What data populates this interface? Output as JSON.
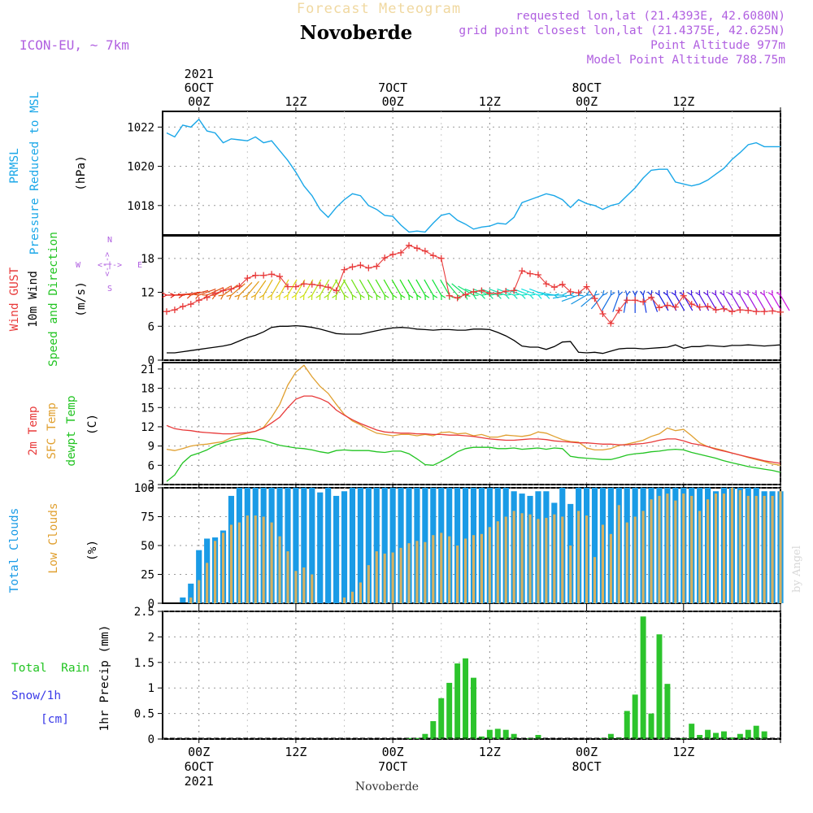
{
  "header": {
    "title_faint": "Forecast Meteogram",
    "location": "Novoberde",
    "model": "ICON-EU, ~ 7km",
    "info_lines": [
      "requested lon,lat (21.4393E, 42.6080N)",
      "grid point closest lon,lat (21.4375E, 42.625N)",
      "Point Altitude 977m",
      "Model Point Altitude 788.75m"
    ],
    "footer_location": "Novoberde",
    "credit": "by Angel"
  },
  "time_axis": {
    "top_labels": [
      {
        "t": 0,
        "lines": [
          "2021",
          "6OCT",
          "00Z"
        ]
      },
      {
        "t": 12,
        "lines": [
          "12Z"
        ]
      },
      {
        "t": 24,
        "lines": [
          "7OCT",
          "00Z"
        ]
      },
      {
        "t": 36,
        "lines": [
          "12Z"
        ]
      },
      {
        "t": 48,
        "lines": [
          "8OCT",
          "00Z"
        ]
      },
      {
        "t": 60,
        "lines": [
          "12Z"
        ]
      }
    ],
    "bottom_labels": [
      {
        "t": 0,
        "lines": [
          "00Z",
          "6OCT",
          "2021"
        ]
      },
      {
        "t": 12,
        "lines": [
          "12Z"
        ]
      },
      {
        "t": 24,
        "lines": [
          "00Z",
          "7OCT"
        ]
      },
      {
        "t": 36,
        "lines": [
          "12Z"
        ]
      },
      {
        "t": 48,
        "lines": [
          "00Z",
          "8OCT"
        ]
      },
      {
        "t": 60,
        "lines": [
          "12Z"
        ]
      }
    ],
    "range_hours": [
      -4.5,
      72
    ]
  },
  "colors": {
    "pressure": "#1aa7e8",
    "gust": "#e83a3a",
    "wind": "#000000",
    "temp2m": "#e83a3a",
    "sfc": "#e0a030",
    "dew": "#22c422",
    "total_clouds": "#1a9be6",
    "low_clouds": "#d6b060",
    "rain": "#2cc42c",
    "snow": "#3a3ae8",
    "meta": "#b060e0"
  },
  "chart_data": [
    {
      "type": "line",
      "name": "pressure",
      "labels": [
        "PRMSL",
        "Pressure Reduced to MSL",
        "(hPa)"
      ],
      "ylim": [
        1016.5,
        1022.8
      ],
      "yticks": [
        1018,
        1020,
        1022
      ],
      "x": [
        -4,
        -3,
        -2,
        -1,
        0,
        1,
        2,
        3,
        4,
        5,
        6,
        7,
        8,
        9,
        10,
        11,
        12,
        13,
        14,
        15,
        16,
        17,
        18,
        19,
        20,
        21,
        22,
        23,
        24,
        25,
        26,
        27,
        28,
        29,
        30,
        31,
        32,
        33,
        34,
        35,
        36,
        37,
        38,
        39,
        40,
        41,
        42,
        43,
        44,
        45,
        46,
        47,
        48,
        49,
        50,
        51,
        52,
        53,
        54,
        55,
        56,
        57,
        58,
        59,
        60,
        61,
        62,
        63,
        64,
        65,
        66,
        67,
        68,
        69,
        70,
        71,
        72
      ],
      "values": [
        1021.7,
        1021.5,
        1022.1,
        1022.0,
        1022.4,
        1021.8,
        1021.7,
        1021.2,
        1021.4,
        1021.35,
        1021.3,
        1021.5,
        1021.2,
        1021.3,
        1020.8,
        1020.3,
        1019.7,
        1019.0,
        1018.5,
        1017.8,
        1017.4,
        1017.9,
        1018.3,
        1018.6,
        1018.5,
        1018.0,
        1017.8,
        1017.5,
        1017.45,
        1017.0,
        1016.65,
        1016.7,
        1016.65,
        1017.1,
        1017.5,
        1017.6,
        1017.25,
        1017.05,
        1016.8,
        1016.9,
        1016.95,
        1017.1,
        1017.05,
        1017.4,
        1018.15,
        1018.3,
        1018.45,
        1018.6,
        1018.5,
        1018.3,
        1017.9,
        1018.3,
        1018.1,
        1018.0,
        1017.8,
        1018.0,
        1018.1,
        1018.5,
        1018.9,
        1019.4,
        1019.8,
        1019.85,
        1019.85,
        1019.2,
        1019.1,
        1019.0,
        1019.1,
        1019.3,
        1019.6,
        1019.9,
        1020.35,
        1020.7,
        1021.1,
        1021.2,
        1021.0,
        1021.0,
        1021.0
      ]
    },
    {
      "type": "line",
      "name": "wind",
      "labels": [
        "Wind GUST",
        "10m Wind",
        "Speed and Direction",
        "(m/s)"
      ],
      "compass": {
        "n": "N",
        "w": "W",
        "e": "E",
        "s": "S",
        "glyph": "<-|->"
      },
      "ylim": [
        0,
        22
      ],
      "yticks": [
        0,
        6,
        12,
        18
      ],
      "x": [
        -4,
        -3,
        -2,
        -1,
        0,
        1,
        2,
        3,
        4,
        5,
        6,
        7,
        8,
        9,
        10,
        11,
        12,
        13,
        14,
        15,
        16,
        17,
        18,
        19,
        20,
        21,
        22,
        23,
        24,
        25,
        26,
        27,
        28,
        29,
        30,
        31,
        32,
        33,
        34,
        35,
        36,
        37,
        38,
        39,
        40,
        41,
        42,
        43,
        44,
        45,
        46,
        47,
        48,
        49,
        50,
        51,
        52,
        53,
        54,
        55,
        56,
        57,
        58,
        59,
        60,
        61,
        62,
        63,
        64,
        65,
        66,
        67,
        68,
        69,
        70,
        71,
        72
      ],
      "wind_values": [
        1.3,
        1.3,
        1.5,
        1.7,
        1.9,
        2.1,
        2.3,
        2.5,
        2.8,
        3.4,
        4.0,
        4.4,
        5.0,
        5.8,
        6.0,
        6.0,
        6.1,
        6.0,
        5.8,
        5.5,
        5.1,
        4.7,
        4.6,
        4.6,
        4.6,
        4.9,
        5.2,
        5.5,
        5.7,
        5.8,
        5.7,
        5.5,
        5.4,
        5.3,
        5.4,
        5.4,
        5.3,
        5.3,
        5.5,
        5.5,
        5.4,
        4.9,
        4.3,
        3.5,
        2.5,
        2.3,
        2.3,
        1.9,
        2.4,
        3.2,
        3.3,
        1.4,
        1.3,
        1.4,
        1.2,
        1.6,
        2.0,
        2.1,
        2.1,
        2.0,
        2.1,
        2.2,
        2.3,
        2.7,
        2.1,
        2.4,
        2.4,
        2.6,
        2.5,
        2.4,
        2.6,
        2.6,
        2.7,
        2.6,
        2.5,
        2.6,
        2.7
      ],
      "gust_values": [
        8.6,
        8.9,
        9.5,
        9.9,
        10.6,
        11.1,
        11.8,
        12.3,
        12.6,
        13.1,
        14.5,
        15.0,
        15.0,
        15.2,
        14.8,
        13.0,
        13.0,
        13.5,
        13.4,
        13.2,
        12.9,
        12.3,
        16.0,
        16.5,
        16.8,
        16.3,
        16.6,
        18.1,
        18.7,
        19.0,
        20.3,
        19.8,
        19.3,
        18.5,
        18.0,
        11.4,
        11.0,
        11.6,
        12.1,
        12.3,
        11.8,
        11.8,
        12.2,
        12.3,
        15.8,
        15.3,
        15.1,
        13.5,
        12.9,
        13.4,
        12.1,
        11.9,
        13.0,
        10.9,
        8.2,
        6.5,
        8.8,
        10.6,
        10.6,
        10.3,
        11.1,
        9.3,
        9.7,
        9.4,
        11.4,
        9.9,
        9.4,
        9.5,
        8.9,
        9.1,
        8.6,
        8.9,
        8.8,
        8.6,
        8.6,
        8.7,
        8.5
      ],
      "direction_deg": [
        90,
        85,
        80,
        75,
        70,
        65,
        60,
        55,
        50,
        45,
        40,
        35,
        30,
        30,
        30,
        30,
        30,
        30,
        30,
        30,
        30,
        30,
        330,
        330,
        330,
        330,
        330,
        330,
        330,
        330,
        330,
        330,
        330,
        330,
        330,
        330,
        320,
        310,
        300,
        290,
        290,
        290,
        290,
        290,
        290,
        290,
        290,
        290,
        280,
        270,
        260,
        250,
        240,
        230,
        220,
        210,
        200,
        190,
        180,
        170,
        160,
        150,
        150,
        150,
        150,
        150,
        150,
        150,
        150,
        150,
        150,
        150,
        150,
        150,
        150,
        150,
        150
      ]
    },
    {
      "type": "line",
      "name": "temperature",
      "labels": [
        "2m Temp",
        "SFC Temp",
        "dewpt Temp",
        "(C)"
      ],
      "ylim": [
        3,
        22
      ],
      "yticks": [
        3,
        6,
        9,
        12,
        15,
        18,
        21
      ],
      "x": [
        -4,
        -3,
        -2,
        -1,
        0,
        1,
        2,
        3,
        4,
        5,
        6,
        7,
        8,
        9,
        10,
        11,
        12,
        13,
        14,
        15,
        16,
        17,
        18,
        19,
        20,
        21,
        22,
        23,
        24,
        25,
        26,
        27,
        28,
        29,
        30,
        31,
        32,
        33,
        34,
        35,
        36,
        37,
        38,
        39,
        40,
        41,
        42,
        43,
        44,
        45,
        46,
        47,
        48,
        49,
        50,
        51,
        52,
        53,
        54,
        55,
        56,
        57,
        58,
        59,
        60,
        61,
        62,
        63,
        64,
        65,
        66,
        67,
        68,
        69,
        70,
        71,
        72
      ],
      "temp2m": [
        12.2,
        11.7,
        11.5,
        11.4,
        11.2,
        11.1,
        11.0,
        10.9,
        10.9,
        11.0,
        11.1,
        11.3,
        11.8,
        12.6,
        13.5,
        15.0,
        16.3,
        16.8,
        16.8,
        16.4,
        15.8,
        14.6,
        13.8,
        13.1,
        12.5,
        12.0,
        11.5,
        11.2,
        11.1,
        11.0,
        11.0,
        10.9,
        10.9,
        10.8,
        10.8,
        10.7,
        10.7,
        10.6,
        10.5,
        10.3,
        10.1,
        10.0,
        9.9,
        9.9,
        10.0,
        10.1,
        10.1,
        10.0,
        9.8,
        9.7,
        9.6,
        9.5,
        9.5,
        9.4,
        9.3,
        9.3,
        9.2,
        9.2,
        9.3,
        9.4,
        9.6,
        9.9,
        10.1,
        10.1,
        9.8,
        9.4,
        9.2,
        8.9,
        8.5,
        8.2,
        7.9,
        7.6,
        7.3,
        7.0,
        6.7,
        6.5,
        6.3
      ],
      "sfc": [
        8.5,
        8.3,
        8.6,
        9.0,
        9.2,
        9.3,
        9.5,
        9.7,
        10.3,
        10.7,
        11.0,
        11.3,
        11.9,
        13.5,
        15.5,
        18.5,
        20.5,
        21.6,
        19.8,
        18.3,
        17.2,
        15.5,
        13.9,
        12.9,
        12.3,
        11.6,
        11.0,
        10.8,
        10.6,
        10.8,
        10.8,
        10.6,
        10.8,
        10.6,
        11.1,
        11.2,
        10.9,
        11.0,
        10.6,
        10.8,
        10.4,
        10.4,
        10.7,
        10.6,
        10.5,
        10.7,
        11.2,
        11.0,
        10.5,
        10.0,
        9.7,
        9.6,
        8.7,
        8.4,
        8.4,
        8.6,
        9.1,
        9.3,
        9.6,
        9.9,
        10.5,
        10.9,
        11.8,
        11.4,
        11.6,
        10.6,
        9.5,
        8.9,
        8.6,
        8.3,
        7.9,
        7.6,
        7.2,
        6.9,
        6.6,
        6.2,
        6.0
      ],
      "dew": [
        3.5,
        4.5,
        6.4,
        7.5,
        7.9,
        8.4,
        9.1,
        9.5,
        9.9,
        10.1,
        10.2,
        10.1,
        9.9,
        9.5,
        9.1,
        8.9,
        8.7,
        8.6,
        8.4,
        8.1,
        7.9,
        8.3,
        8.4,
        8.3,
        8.3,
        8.3,
        8.1,
        8.0,
        8.2,
        8.2,
        7.8,
        7.0,
        6.1,
        6.0,
        6.6,
        7.3,
        8.1,
        8.6,
        8.8,
        8.8,
        8.8,
        8.6,
        8.6,
        8.7,
        8.5,
        8.6,
        8.7,
        8.5,
        8.7,
        8.6,
        7.4,
        7.2,
        7.1,
        7.0,
        6.9,
        6.9,
        7.2,
        7.6,
        7.8,
        7.9,
        8.1,
        8.2,
        8.4,
        8.5,
        8.4,
        8.0,
        7.7,
        7.4,
        7.1,
        6.7,
        6.4,
        6.1,
        5.8,
        5.6,
        5.4,
        5.2,
        4.9
      ]
    },
    {
      "type": "bar",
      "name": "clouds",
      "labels": [
        "Total Clouds",
        "Low Clouds",
        "(%)"
      ],
      "ylim": [
        0,
        100
      ],
      "yticks": [
        0,
        25,
        50,
        75,
        100
      ],
      "x": [
        -4,
        -3,
        -2,
        -1,
        0,
        1,
        2,
        3,
        4,
        5,
        6,
        7,
        8,
        9,
        10,
        11,
        12,
        13,
        14,
        15,
        16,
        17,
        18,
        19,
        20,
        21,
        22,
        23,
        24,
        25,
        26,
        27,
        28,
        29,
        30,
        31,
        32,
        33,
        34,
        35,
        36,
        37,
        38,
        39,
        40,
        41,
        42,
        43,
        44,
        45,
        46,
        47,
        48,
        49,
        50,
        51,
        52,
        53,
        54,
        55,
        56,
        57,
        58,
        59,
        60,
        61,
        62,
        63,
        64,
        65,
        66,
        67,
        68,
        69,
        70,
        71,
        72
      ],
      "total": [
        0,
        0,
        5,
        17,
        46,
        56,
        57,
        63,
        93,
        100,
        100,
        100,
        100,
        100,
        100,
        100,
        100,
        100,
        100,
        96,
        100,
        93,
        97,
        100,
        100,
        100,
        100,
        100,
        100,
        100,
        100,
        100,
        100,
        100,
        100,
        100,
        100,
        100,
        100,
        100,
        100,
        100,
        100,
        97,
        95,
        93,
        97,
        97,
        87,
        100,
        86,
        100,
        100,
        100,
        100,
        100,
        100,
        100,
        100,
        100,
        100,
        100,
        100,
        100,
        100,
        100,
        100,
        100,
        97,
        100,
        100,
        100,
        100,
        100,
        97,
        97,
        97
      ],
      "low": [
        0,
        0,
        0,
        5,
        20,
        35,
        54,
        61,
        68,
        70,
        76,
        76,
        75,
        70,
        58,
        45,
        28,
        31,
        25,
        0,
        0,
        0,
        5,
        10,
        18,
        33,
        45,
        43,
        44,
        48,
        52,
        54,
        53,
        59,
        61,
        58,
        50,
        56,
        59,
        60,
        66,
        71,
        75,
        80,
        78,
        77,
        73,
        74,
        77,
        75,
        50,
        80,
        76,
        40,
        68,
        60,
        85,
        70,
        75,
        80,
        90,
        93,
        95,
        89,
        95,
        93,
        80,
        90,
        95,
        95,
        100,
        98,
        93,
        93,
        93,
        93,
        97
      ]
    },
    {
      "type": "bar",
      "name": "precip",
      "labels": [
        "1hr Precip (mm)"
      ],
      "legend": {
        "rain": "Total  Rain",
        "snow": "Snow/1h",
        "snow_unit": "[cm]"
      },
      "ylim": [
        0,
        2.5
      ],
      "yticks": [
        0,
        0.5,
        1,
        1.5,
        2,
        2.5
      ],
      "x": [
        -4,
        -3,
        -2,
        -1,
        0,
        1,
        2,
        3,
        4,
        5,
        6,
        7,
        8,
        9,
        10,
        11,
        12,
        13,
        14,
        15,
        16,
        17,
        18,
        19,
        20,
        21,
        22,
        23,
        24,
        25,
        26,
        27,
        28,
        29,
        30,
        31,
        32,
        33,
        34,
        35,
        36,
        37,
        38,
        39,
        40,
        41,
        42,
        43,
        44,
        45,
        46,
        47,
        48,
        49,
        50,
        51,
        52,
        53,
        54,
        55,
        56,
        57,
        58,
        59,
        60,
        61,
        62,
        63,
        64,
        65,
        66,
        67,
        68,
        69,
        70,
        71,
        72
      ],
      "rain": [
        0,
        0,
        0,
        0,
        0,
        0,
        0,
        0,
        0,
        0,
        0,
        0,
        0,
        0,
        0,
        0,
        0,
        0,
        0,
        0,
        0,
        0,
        0,
        0,
        0,
        0,
        0,
        0,
        0,
        0,
        0.02,
        0.02,
        0.1,
        0.35,
        0.8,
        1.1,
        1.48,
        1.58,
        1.2,
        0.05,
        0.18,
        0.2,
        0.18,
        0.1,
        0,
        0.02,
        0.08,
        0,
        0,
        0,
        0,
        0,
        0,
        0,
        0.02,
        0.1,
        0.03,
        0.55,
        0.87,
        2.4,
        0.5,
        2.05,
        1.08,
        0,
        0.02,
        0.3,
        0.08,
        0.18,
        0.12,
        0.15,
        0.03,
        0.1,
        0.18,
        0.26,
        0.15,
        0,
        0
      ]
    }
  ]
}
